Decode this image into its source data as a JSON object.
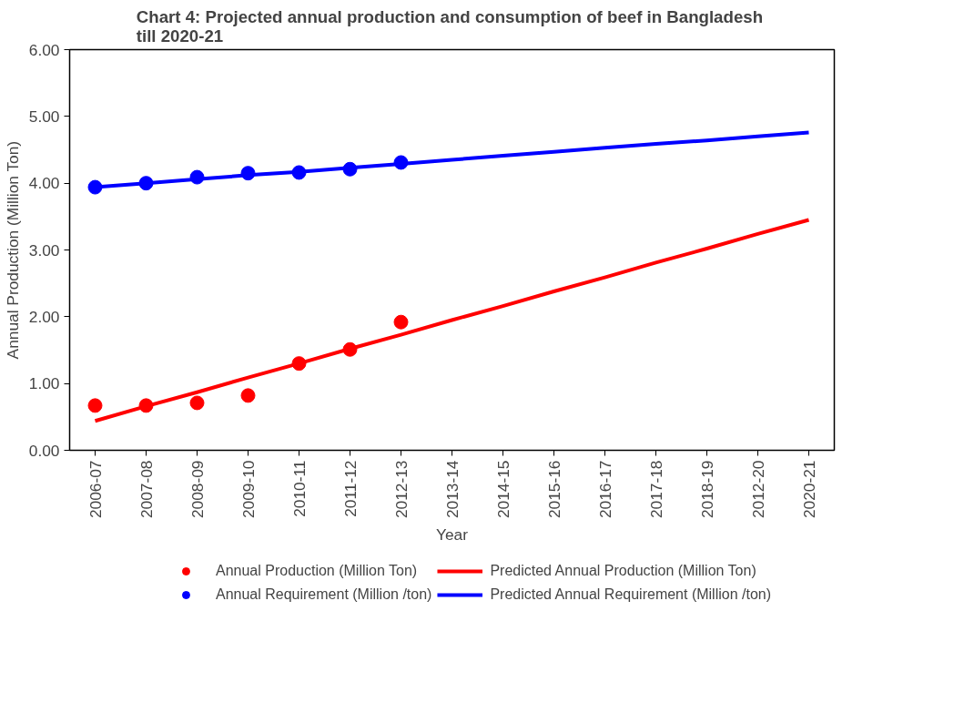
{
  "chart_data": {
    "type": "scatter",
    "title": "Chart  4: Projected annual production and consumption of beef in Bangladesh till 2020-21",
    "xlabel": "Year",
    "ylabel": "Annual Production (Million Ton)",
    "categories": [
      "2006-07",
      "2007-08",
      "2008-09",
      "2009-10",
      "2010-11",
      "2011-12",
      "2012-13",
      "2013-14",
      "2014-15",
      "2015-16",
      "2016-17",
      "2017-18",
      "2018-19",
      "2012-20",
      "2020-21"
    ],
    "series": [
      {
        "name": "Annual Production (Million Ton)",
        "color": "#ff0000",
        "marker": "circle",
        "values": [
          0.67,
          0.67,
          0.71,
          0.82,
          1.3,
          1.51,
          1.92,
          null,
          null,
          null,
          null,
          null,
          null,
          null,
          null
        ]
      },
      {
        "name": "Predicted Annual Production (Million Ton)",
        "type": "line",
        "color": "#ff0000",
        "values": [
          0.44,
          0.66,
          0.87,
          1.09,
          1.3,
          1.52,
          1.73,
          1.95,
          2.16,
          2.38,
          2.59,
          2.81,
          3.02,
          3.24,
          3.45
        ]
      },
      {
        "name": "Annual Requirement (Million /ton)",
        "color": "#0000ff",
        "marker": "circle",
        "values": [
          3.94,
          4.0,
          4.09,
          4.15,
          4.16,
          4.21,
          4.31,
          null,
          null,
          null,
          null,
          null,
          null,
          null,
          null
        ]
      },
      {
        "name": "Predicted Annual Requirement (Million /ton)",
        "type": "line",
        "color": "#0000ff",
        "values": [
          3.94,
          4.0,
          4.06,
          4.12,
          4.17,
          4.23,
          4.29,
          4.35,
          4.41,
          4.47,
          4.53,
          4.59,
          4.64,
          4.7,
          4.76
        ]
      }
    ],
    "ylim": [
      0,
      6
    ],
    "yticks": [
      {
        "value": 0,
        "label": "0.00"
      },
      {
        "value": 1,
        "label": "1.00"
      },
      {
        "value": 2,
        "label": "2.00"
      },
      {
        "value": 3,
        "label": "3.00"
      },
      {
        "value": 4,
        "label": "4.00"
      },
      {
        "value": 5,
        "label": "5.00"
      },
      {
        "value": 6,
        "label": "6.00"
      }
    ],
    "legend": "bottom"
  }
}
